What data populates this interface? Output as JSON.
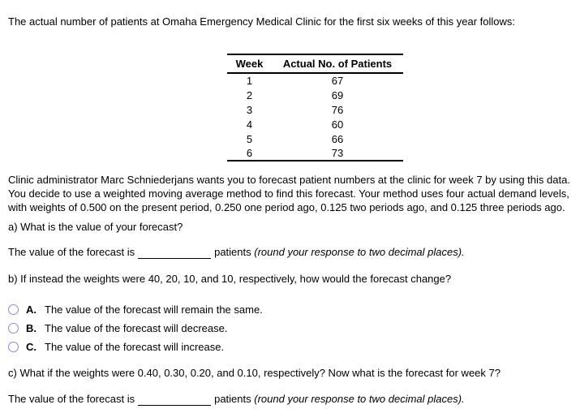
{
  "intro": "The actual number of patients at Omaha Emergency Medical Clinic for the first six weeks of this year follows:",
  "table": {
    "headers": [
      "Week",
      "Actual No. of Patients"
    ],
    "rows": [
      {
        "week": "1",
        "patients": "67"
      },
      {
        "week": "2",
        "patients": "69"
      },
      {
        "week": "3",
        "patients": "76"
      },
      {
        "week": "4",
        "patients": "60"
      },
      {
        "week": "5",
        "patients": "66"
      },
      {
        "week": "6",
        "patients": "73"
      }
    ]
  },
  "scenario": "Clinic administrator Marc Schniederjans wants you to forecast patient numbers at the clinic for week 7 by using this data. You decide to use a weighted moving average method to find this forecast. Your method uses four actual demand levels, with weights of 0.500 on the present period, 0.250 one period ago, 0.125 two periods ago, and 0.125 three periods ago.",
  "part_a": {
    "question": "a) What is the value of your forecast?",
    "answer_prefix": "The value of the forecast is",
    "answer_value": "",
    "answer_suffix": "patients",
    "answer_note": "(round your response to two decimal places)."
  },
  "part_b": {
    "question": "b) If instead the weights were 40, 20, 10, and 10, respectively, how would the forecast change?",
    "options": [
      {
        "letter": "A.",
        "text": "The value of the forecast will remain the same."
      },
      {
        "letter": "B.",
        "text": "The value of the forecast will decrease."
      },
      {
        "letter": "C.",
        "text": "The value of the forecast will increase."
      }
    ]
  },
  "part_c": {
    "question": "c) What if the weights were 0.40, 0.30, 0.20, and 0.10, respectively? Now what is the forecast for week 7?",
    "answer_prefix": "The value of the forecast is",
    "answer_value": "",
    "answer_suffix": "patients",
    "answer_note": "(round your response to two decimal places)."
  },
  "colors": {
    "radio_border": "#8b8bd4",
    "text": "#000000"
  }
}
